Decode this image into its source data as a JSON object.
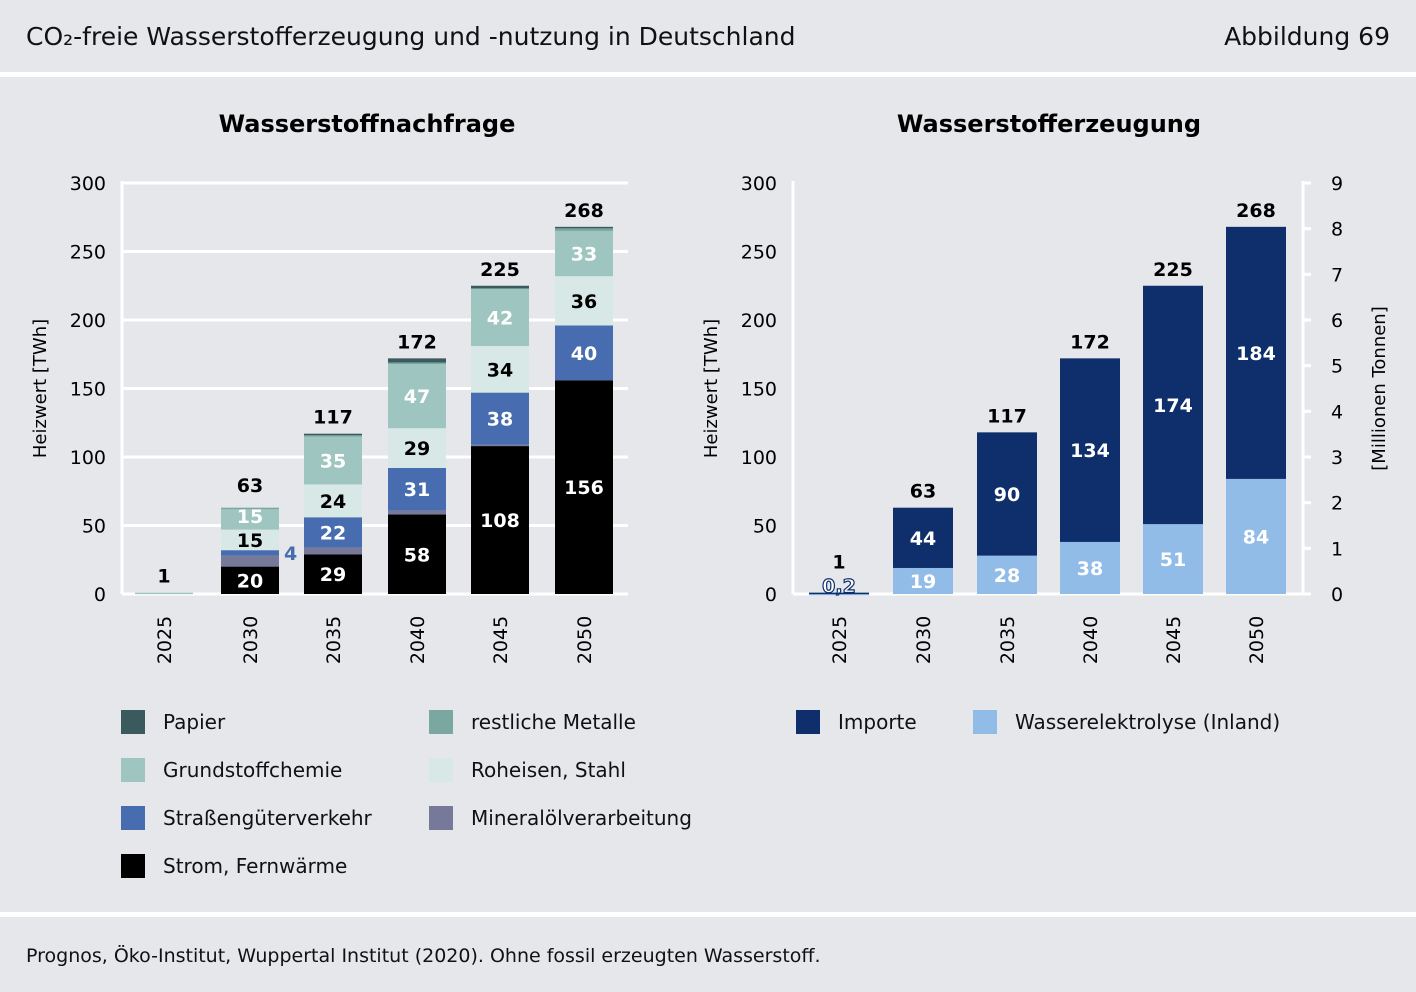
{
  "header": {
    "title": "CO₂-freie Wasserstofferzeugung und -nutzung in Deutschland",
    "figure": "Abbildung 69"
  },
  "footer": {
    "source": "Prognos, Öko-Institut, Wuppertal Institut (2020). Ohne fossil erzeugten Wasserstoff."
  },
  "chart_data": [
    {
      "type": "bar",
      "stacked": true,
      "title": "Wasserstoffnachfrage",
      "ylabel": "Heizwert [TWh]",
      "ylim": [
        0,
        300
      ],
      "yticks": [
        0,
        50,
        100,
        150,
        200,
        250,
        300
      ],
      "grid": true,
      "categories": [
        "2025",
        "2030",
        "2035",
        "2040",
        "2045",
        "2050"
      ],
      "totals": [
        "1",
        "63",
        "117",
        "172",
        "225",
        "268"
      ],
      "series": [
        {
          "name": "Strom, Fernwärme",
          "color": "#000000",
          "values": [
            0,
            20,
            29,
            58,
            108,
            156
          ],
          "labels": [
            "",
            "20",
            "29",
            "58",
            "108",
            "156"
          ],
          "label_color": "#ffffff"
        },
        {
          "name": "Mineralölverarbeitung",
          "color": "#76799a",
          "values": [
            0,
            8,
            5,
            3,
            1,
            0
          ],
          "labels": [
            "",
            "",
            "",
            "",
            "",
            ""
          ],
          "label_color": "#ffffff"
        },
        {
          "name": "Straßengüterverkehr",
          "color": "#476cb0",
          "values": [
            0,
            4,
            22,
            31,
            38,
            40
          ],
          "labels": [
            "",
            "4",
            "22",
            "31",
            "38",
            "40"
          ],
          "label_color": "#ffffff"
        },
        {
          "name": "Roheisen, Stahl",
          "color": "#d7e8e6",
          "values": [
            0,
            15,
            24,
            29,
            34,
            36
          ],
          "labels": [
            "",
            "15",
            "24",
            "29",
            "34",
            "36"
          ],
          "label_color": "#000000"
        },
        {
          "name": "Grundstoffchemie",
          "color": "#9fc5c0",
          "values": [
            1,
            15,
            35,
            47,
            42,
            33
          ],
          "labels": [
            "",
            "15",
            "35",
            "47",
            "42",
            "33"
          ],
          "label_color": "#ffffff"
        },
        {
          "name": "restliche Metalle",
          "color": "#7aa7a0",
          "values": [
            0,
            1,
            1,
            1,
            0,
            2
          ],
          "labels": [
            "",
            "",
            "",
            "",
            "",
            ""
          ],
          "label_color": "#ffffff"
        },
        {
          "name": "Papier",
          "color": "#3a5a5e",
          "values": [
            0,
            0,
            1,
            3,
            2,
            1
          ],
          "labels": [
            "",
            "",
            "",
            "",
            "",
            ""
          ],
          "label_color": "#ffffff"
        }
      ]
    },
    {
      "type": "bar",
      "stacked": true,
      "title": "Wasserstofferzeugung",
      "ylabel": "Heizwert [TWh]",
      "ylabel_right": "[Millionen Tonnen]",
      "ylim": [
        0,
        300
      ],
      "ylim_right": [
        0,
        9
      ],
      "yticks": [
        0,
        50,
        100,
        150,
        200,
        250,
        300
      ],
      "yticks_right": [
        0,
        1,
        2,
        3,
        4,
        5,
        6,
        7,
        8,
        9
      ],
      "grid": false,
      "categories": [
        "2025",
        "2030",
        "2035",
        "2040",
        "2045",
        "2050"
      ],
      "totals": [
        "1",
        "63",
        "117",
        "172",
        "225",
        "268"
      ],
      "series": [
        {
          "name": "Wasserelektrolyse (Inland)",
          "color": "#92bce8",
          "values": [
            0.2,
            19,
            28,
            38,
            51,
            84
          ],
          "labels": [
            "0,2",
            "19",
            "28",
            "38",
            "51",
            "84"
          ],
          "label_color": "#ffffff"
        },
        {
          "name": "Importe",
          "color": "#0e2f6b",
          "values": [
            0.8,
            44,
            90,
            134,
            174,
            184
          ],
          "labels": [
            "",
            "44",
            "90",
            "134",
            "174",
            "184"
          ],
          "label_color": "#ffffff"
        }
      ]
    }
  ],
  "legend_left": [
    "Papier",
    "restliche Metalle",
    "Grundstoffchemie",
    "Roheisen, Stahl",
    "Straßengüterverkehr",
    "Mineralölverarbeitung",
    "Strom, Fernwärme"
  ],
  "legend_right": [
    "Importe",
    "Wasserelektrolyse (Inland)"
  ]
}
